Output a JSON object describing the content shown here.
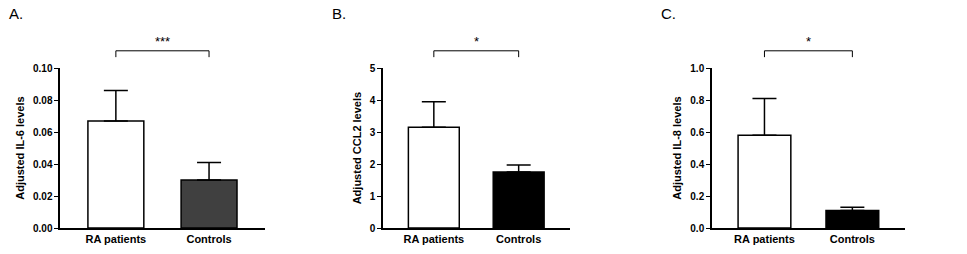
{
  "chart_data": [
    {
      "type": "bar",
      "title": "A.",
      "y_label": "Adjusted IL-6 levels",
      "categories": [
        "RA patients",
        "Controls"
      ],
      "values": [
        0.067,
        0.03
      ],
      "errors": [
        0.019,
        0.011
      ],
      "colors": [
        "#ffffff",
        "#404040"
      ],
      "ylim": [
        0,
        0.1
      ],
      "yticks": [
        {
          "value": 0,
          "label": "0.00"
        },
        0.02,
        0.04,
        0.06,
        0.08,
        {
          "value": 0.1,
          "label": "0.10"
        }
      ],
      "annotation": "***"
    },
    {
      "type": "bar",
      "title": "B.",
      "y_label": "Adjusted CCL2 levels",
      "categories": [
        "RA patients",
        "Controls"
      ],
      "values": [
        3.15,
        1.75
      ],
      "errors": [
        0.8,
        0.22
      ],
      "colors": [
        "#ffffff",
        "#000000"
      ],
      "ylim": [
        0,
        5
      ],
      "yticks": [
        0,
        1,
        2,
        3,
        4,
        5
      ],
      "annotation": "*"
    },
    {
      "type": "bar",
      "title": "C.",
      "y_label": "Adjusted IL-8 levels",
      "categories": [
        "RA patients",
        "Controls"
      ],
      "values": [
        0.58,
        0.11
      ],
      "errors": [
        0.23,
        0.02
      ],
      "colors": [
        "#ffffff",
        "#000000"
      ],
      "ylim": [
        0,
        1.0
      ],
      "yticks": [
        {
          "value": 0,
          "label": "0.0"
        },
        0.2,
        0.4,
        0.6,
        0.8,
        {
          "value": 1.0,
          "label": "1.0"
        }
      ],
      "annotation": "*"
    }
  ]
}
